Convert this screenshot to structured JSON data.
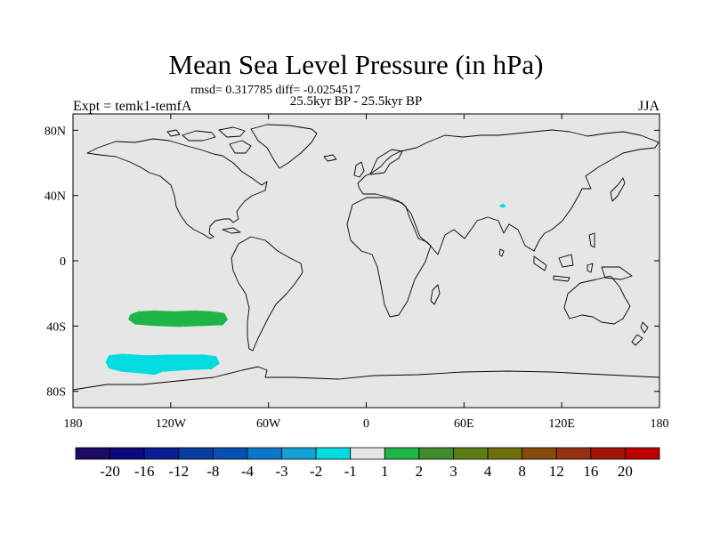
{
  "title": "Mean Sea Level Pressure (in hPa)",
  "stats_line": "rmsd= 0.317785 diff= -0.0254517",
  "subtitle": "25.5kyr BP - 25.5kyr BP",
  "left_label": "Expt = temk1-temfA",
  "right_label": "JJA",
  "map": {
    "projection": "cylindrical equidistant",
    "lon_range": [
      -180,
      180
    ],
    "lat_range": [
      -90,
      90
    ],
    "lon_ticks": [
      {
        "value": -180,
        "label": "180"
      },
      {
        "value": -120,
        "label": "120W"
      },
      {
        "value": -60,
        "label": "60W"
      },
      {
        "value": 0,
        "label": "0"
      },
      {
        "value": 60,
        "label": "60E"
      },
      {
        "value": 120,
        "label": "120E"
      },
      {
        "value": 180,
        "label": "180"
      }
    ],
    "lat_ticks": [
      {
        "value": 80,
        "label": "80N"
      },
      {
        "value": 40,
        "label": "40N"
      },
      {
        "value": 0,
        "label": "0"
      },
      {
        "value": -40,
        "label": "40S"
      },
      {
        "value": -80,
        "label": "80S"
      }
    ],
    "background_color": "#e6e6e6",
    "anomaly_patches": [
      {
        "name": "south-pacific-positive",
        "level_index": 9,
        "lon": [
          -145,
          -140,
          -130,
          -118,
          -105,
          -95,
          -87,
          -85,
          -88,
          -100,
          -115,
          -130,
          -142,
          -146
        ],
        "lat": [
          -33,
          -31,
          -30.5,
          -31,
          -30.5,
          -31,
          -32,
          -36,
          -39.5,
          -40,
          -40.5,
          -40,
          -39,
          -36
        ]
      },
      {
        "name": "southern-ocean-negative",
        "level_index": 7,
        "lon": [
          -158,
          -150,
          -135,
          -120,
          -100,
          -92,
          -90,
          -95,
          -110,
          -125,
          -130,
          -138,
          -150,
          -158,
          -160
        ],
        "lat": [
          -58,
          -57,
          -58,
          -57.5,
          -57.5,
          -58.5,
          -63,
          -66.5,
          -67,
          -68,
          -70,
          -69,
          -68,
          -66,
          -62
        ]
      },
      {
        "name": "tibet-negative",
        "level_index": 7,
        "lon": [
          82,
          84,
          86,
          84,
          82
        ],
        "lat": [
          34,
          35,
          33.5,
          32.5,
          33
        ]
      }
    ]
  },
  "colorbar": {
    "labels": [
      "-20",
      "-16",
      "-12",
      "-8",
      "-4",
      "-3",
      "-2",
      "-1",
      "1",
      "2",
      "3",
      "4",
      "8",
      "12",
      "16",
      "20"
    ],
    "colors": [
      "#1c0a64",
      "#0a0a80",
      "#0a1e94",
      "#0a3ca0",
      "#0550b0",
      "#0a78c8",
      "#14a0d2",
      "#00dce0",
      "#e6e6e6",
      "#1eb446",
      "#418c2d",
      "#5a7d14",
      "#6e6e0a",
      "#874b0a",
      "#963214",
      "#a0140a",
      "#be0000"
    ]
  }
}
